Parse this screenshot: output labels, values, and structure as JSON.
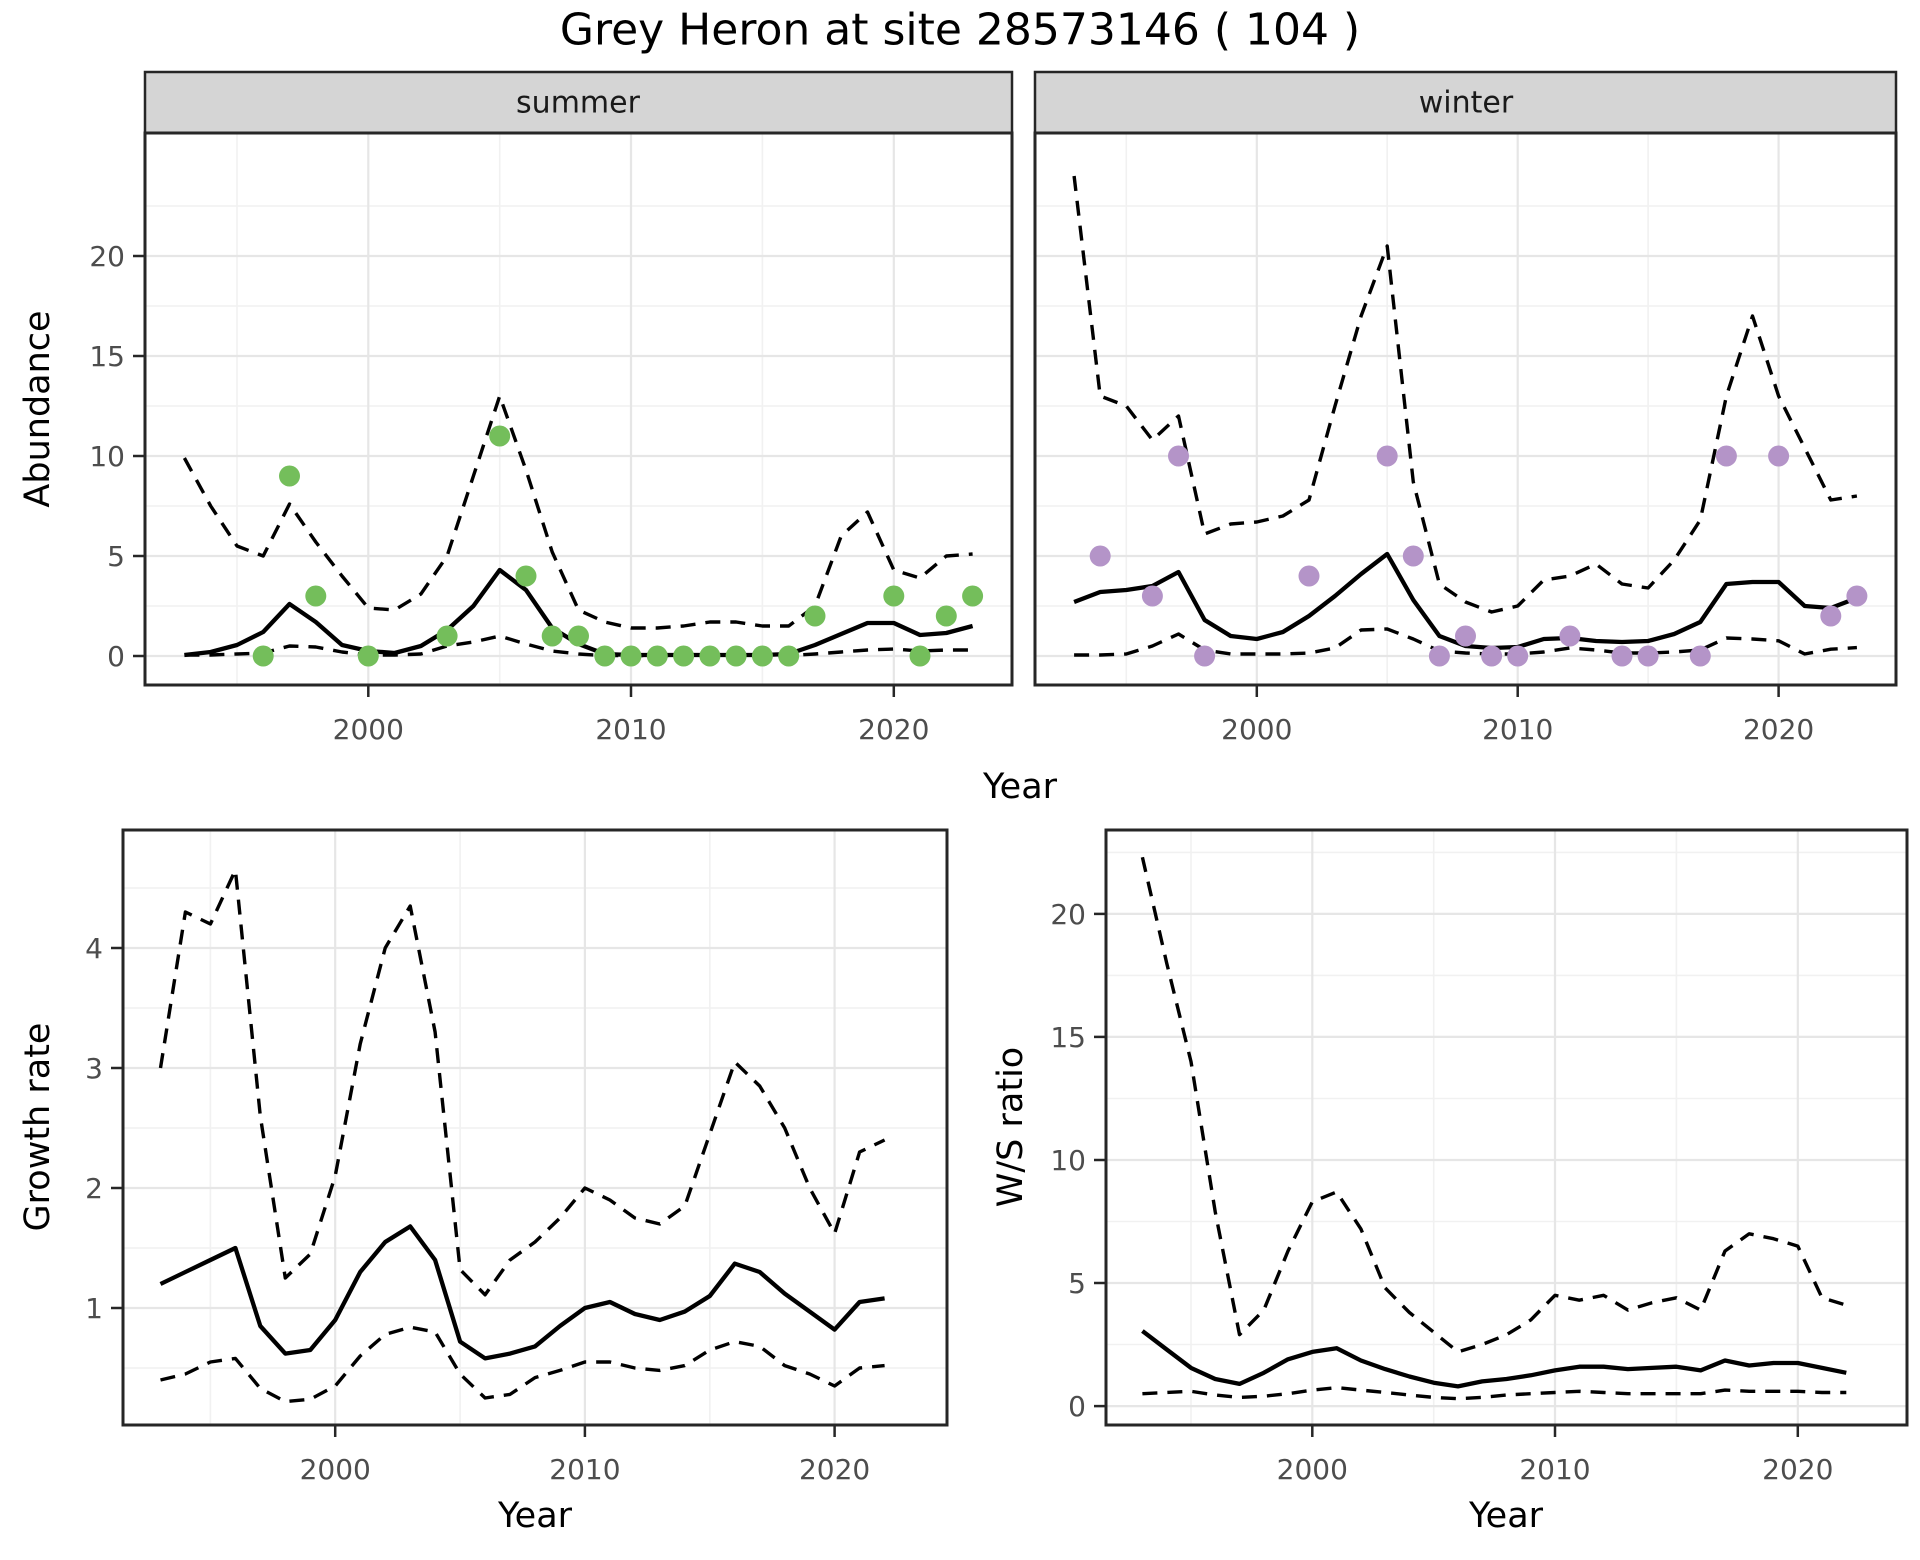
{
  "title": "Grey Heron at site 28573146 ( 104 )",
  "colors": {
    "summer_point": "#74BE5B",
    "winter_point": "#B494C8",
    "line": "#000000",
    "grid_major": "#E6E6E6",
    "grid_minor": "#F1F1F1",
    "strip_bg": "#D5D5D5",
    "panel_border": "#262626",
    "axis_text": "#4D4D4D"
  },
  "chart_data": [
    {
      "id": "abundance-summer",
      "type": "line",
      "facet_label": "summer",
      "ylabel": "Abundance",
      "xlabel": "Year",
      "legend": "none",
      "grid": true,
      "xlim": [
        1991.5,
        2024.5
      ],
      "ylim": [
        -1.45,
        26.15
      ],
      "x_ticks": [
        2000,
        2010,
        2020
      ],
      "y_ticks": [
        0,
        5,
        10,
        15,
        20
      ],
      "point_color": "#74BE5B",
      "years": [
        1993,
        1994,
        1995,
        1996,
        1997,
        1998,
        1999,
        2000,
        2001,
        2002,
        2003,
        2004,
        2005,
        2006,
        2007,
        2008,
        2009,
        2010,
        2011,
        2012,
        2013,
        2014,
        2015,
        2016,
        2017,
        2018,
        2019,
        2020,
        2021,
        2022,
        2023
      ],
      "mean": [
        0.05,
        0.2,
        0.55,
        1.2,
        2.6,
        1.7,
        0.55,
        0.25,
        0.15,
        0.5,
        1.3,
        2.5,
        4.3,
        3.3,
        1.4,
        0.6,
        0.1,
        0.05,
        0.05,
        0.05,
        0.05,
        0.05,
        0.05,
        0.1,
        0.55,
        1.1,
        1.65,
        1.65,
        1.05,
        1.15,
        1.5
      ],
      "upper95": [
        9.9,
        7.5,
        5.5,
        5.0,
        7.6,
        5.7,
        4.0,
        2.4,
        2.3,
        3.1,
        5.0,
        9.0,
        13.0,
        9.3,
        5.2,
        2.3,
        1.7,
        1.4,
        1.4,
        1.5,
        1.7,
        1.7,
        1.5,
        1.5,
        2.5,
        6.0,
        7.2,
        4.3,
        3.9,
        5.0,
        5.1
      ],
      "lower95": [
        0.05,
        0.05,
        0.1,
        0.15,
        0.5,
        0.45,
        0.2,
        0.05,
        0.05,
        0.1,
        0.5,
        0.7,
        1.0,
        0.6,
        0.25,
        0.1,
        0.02,
        0.02,
        0.02,
        0.02,
        0.02,
        0.02,
        0.02,
        0.02,
        0.1,
        0.2,
        0.3,
        0.35,
        0.25,
        0.3,
        0.3
      ],
      "obs_years": [
        1996,
        1997,
        1998,
        2000,
        2003,
        2005,
        2006,
        2007,
        2008,
        2009,
        2010,
        2011,
        2012,
        2013,
        2014,
        2015,
        2016,
        2017,
        2020,
        2021,
        2022,
        2023
      ],
      "obs_values": [
        0,
        9,
        3,
        0,
        1,
        11,
        4,
        1,
        1,
        0,
        0,
        0,
        0,
        0,
        0,
        0,
        0,
        2,
        3,
        0,
        2,
        3
      ]
    },
    {
      "id": "abundance-winter",
      "type": "line",
      "facet_label": "winter",
      "xlabel": "Year",
      "grid": true,
      "xlim": [
        1991.5,
        2024.5
      ],
      "ylim": [
        -1.45,
        26.15
      ],
      "x_ticks": [
        2000,
        2010,
        2020
      ],
      "y_ticks": [
        0,
        5,
        10,
        15,
        20
      ],
      "point_color": "#B494C8",
      "years": [
        1993,
        1994,
        1995,
        1996,
        1997,
        1998,
        1999,
        2000,
        2001,
        2002,
        2003,
        2004,
        2005,
        2006,
        2007,
        2008,
        2009,
        2010,
        2011,
        2012,
        2013,
        2014,
        2015,
        2016,
        2017,
        2018,
        2019,
        2020,
        2021,
        2022,
        2023
      ],
      "mean": [
        2.7,
        3.2,
        3.3,
        3.5,
        4.2,
        1.8,
        1.0,
        0.85,
        1.2,
        2.0,
        3.0,
        4.1,
        5.1,
        2.8,
        1.0,
        0.5,
        0.4,
        0.45,
        0.85,
        0.9,
        0.75,
        0.7,
        0.75,
        1.1,
        1.7,
        3.6,
        3.7,
        3.7,
        2.5,
        2.4,
        2.9
      ],
      "upper95": [
        24,
        13,
        12.5,
        10.8,
        12,
        6.1,
        6.6,
        6.7,
        7.0,
        7.8,
        12.5,
        17,
        20.5,
        8.7,
        3.6,
        2.7,
        2.2,
        2.5,
        3.8,
        4.0,
        4.6,
        3.6,
        3.4,
        4.8,
        6.8,
        13,
        17,
        13,
        10.4,
        7.8,
        8.0
      ],
      "lower95": [
        0.05,
        0.05,
        0.1,
        0.5,
        1.1,
        0.3,
        0.1,
        0.1,
        0.1,
        0.15,
        0.4,
        1.3,
        1.35,
        0.85,
        0.25,
        0.15,
        0.1,
        0.1,
        0.2,
        0.4,
        0.3,
        0.15,
        0.15,
        0.2,
        0.3,
        0.9,
        0.85,
        0.76,
        0.1,
        0.34,
        0.42
      ],
      "obs_years": [
        1994,
        1996,
        1997,
        1998,
        2002,
        2005,
        2006,
        2007,
        2008,
        2009,
        2010,
        2012,
        2014,
        2015,
        2017,
        2018,
        2020,
        2022,
        2023
      ],
      "obs_values": [
        5,
        3,
        10,
        0,
        4,
        10,
        5,
        0,
        1,
        0,
        0,
        1,
        0,
        0,
        0,
        10,
        10,
        2,
        3
      ]
    },
    {
      "id": "growth-rate",
      "type": "line",
      "ylabel": "Growth rate",
      "xlabel": "Year",
      "grid": true,
      "xlim": [
        1991.5,
        2024.5
      ],
      "ylim": [
        0.025,
        4.983
      ],
      "x_ticks": [
        2000,
        2010,
        2020
      ],
      "y_ticks": [
        1,
        2,
        3,
        4
      ],
      "years": [
        1993,
        1994,
        1995,
        1996,
        1997,
        1998,
        1999,
        2000,
        2001,
        2002,
        2003,
        2004,
        2005,
        2006,
        2007,
        2008,
        2009,
        2010,
        2011,
        2012,
        2013,
        2014,
        2015,
        2016,
        2017,
        2018,
        2019,
        2020,
        2021,
        2022
      ],
      "mean": [
        1.2,
        1.3,
        1.4,
        1.5,
        0.85,
        0.62,
        0.65,
        0.9,
        1.3,
        1.55,
        1.68,
        1.4,
        0.72,
        0.58,
        0.62,
        0.68,
        0.85,
        1.0,
        1.05,
        0.95,
        0.9,
        0.97,
        1.1,
        1.37,
        1.3,
        1.12,
        0.97,
        0.82,
        1.05,
        1.08
      ],
      "upper95": [
        3.0,
        4.3,
        4.2,
        4.65,
        2.6,
        1.25,
        1.45,
        2.1,
        3.2,
        4.0,
        4.35,
        3.3,
        1.32,
        1.11,
        1.4,
        1.55,
        1.75,
        2.0,
        1.9,
        1.75,
        1.7,
        1.85,
        2.45,
        3.05,
        2.85,
        2.5,
        2.0,
        1.62,
        2.3,
        2.4
      ],
      "lower95": [
        0.4,
        0.45,
        0.55,
        0.58,
        0.33,
        0.22,
        0.24,
        0.35,
        0.6,
        0.78,
        0.84,
        0.8,
        0.45,
        0.25,
        0.28,
        0.42,
        0.48,
        0.55,
        0.55,
        0.5,
        0.48,
        0.52,
        0.65,
        0.72,
        0.68,
        0.52,
        0.45,
        0.35,
        0.5,
        0.52
      ]
    },
    {
      "id": "ws-ratio",
      "type": "line",
      "ylabel": "W/S ratio",
      "xlabel": "Year",
      "grid": true,
      "xlim": [
        1991.5,
        2024.5
      ],
      "ylim": [
        -0.77,
        23.41
      ],
      "x_ticks": [
        2000,
        2010,
        2020
      ],
      "y_ticks": [
        0,
        5,
        10,
        15,
        20
      ],
      "years": [
        1993,
        1994,
        1995,
        1996,
        1997,
        1998,
        1999,
        2000,
        2001,
        2002,
        2003,
        2004,
        2005,
        2006,
        2007,
        2008,
        2009,
        2010,
        2011,
        2012,
        2013,
        2014,
        2015,
        2016,
        2017,
        2018,
        2019,
        2020,
        2021,
        2022
      ],
      "mean": [
        3.05,
        2.3,
        1.55,
        1.1,
        0.9,
        1.35,
        1.9,
        2.2,
        2.35,
        1.85,
        1.5,
        1.2,
        0.95,
        0.8,
        1.0,
        1.1,
        1.25,
        1.45,
        1.6,
        1.6,
        1.5,
        1.55,
        1.6,
        1.45,
        1.85,
        1.65,
        1.75,
        1.75,
        1.55,
        1.35
      ],
      "upper95": [
        22.3,
        18,
        14,
        7.9,
        2.9,
        3.9,
        6.3,
        8.3,
        8.7,
        7.2,
        4.8,
        3.8,
        3.0,
        2.2,
        2.5,
        2.9,
        3.5,
        4.5,
        4.3,
        4.5,
        3.9,
        4.2,
        4.4,
        3.9,
        6.3,
        7.0,
        6.8,
        6.5,
        4.4,
        4.1
      ],
      "lower95": [
        0.5,
        0.55,
        0.6,
        0.45,
        0.35,
        0.4,
        0.5,
        0.65,
        0.75,
        0.65,
        0.55,
        0.45,
        0.35,
        0.3,
        0.35,
        0.45,
        0.5,
        0.55,
        0.6,
        0.55,
        0.5,
        0.5,
        0.5,
        0.5,
        0.65,
        0.6,
        0.6,
        0.6,
        0.55,
        0.55
      ]
    }
  ]
}
